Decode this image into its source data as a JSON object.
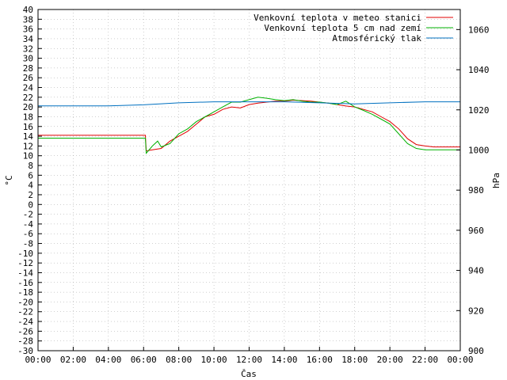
{
  "chart_data": {
    "type": "line",
    "title": "",
    "xlabel": "Čas",
    "ylabel": "°C",
    "y2label": "hPa",
    "xlim": [
      0,
      24
    ],
    "ylim": [
      -30,
      40
    ],
    "y2lim": [
      900,
      1070
    ],
    "grid": true,
    "legend_position": "top-right",
    "x_ticks": [
      "00:00",
      "02:00",
      "04:00",
      "06:00",
      "08:00",
      "10:00",
      "12:00",
      "14:00",
      "16:00",
      "18:00",
      "20:00",
      "22:00",
      "00:00"
    ],
    "y_ticks": [
      40,
      38,
      36,
      34,
      32,
      30,
      28,
      26,
      24,
      22,
      20,
      18,
      16,
      14,
      12,
      10,
      8,
      6,
      4,
      2,
      0,
      -2,
      -4,
      -6,
      -8,
      -10,
      -12,
      -14,
      -16,
      -18,
      -20,
      -22,
      -24,
      -26,
      -28,
      -30
    ],
    "y2_ticks": [
      1060,
      1040,
      1020,
      1000,
      980,
      960,
      940,
      920,
      900
    ],
    "series": [
      {
        "name": "Venkovní teplota v meteo stanici",
        "color": "#e00000",
        "axis": "left",
        "points": [
          [
            0,
            14.2
          ],
          [
            6.1,
            14.2
          ],
          [
            6.15,
            11
          ],
          [
            6.5,
            11.2
          ],
          [
            7,
            11.5
          ],
          [
            7.5,
            13
          ],
          [
            8,
            14
          ],
          [
            8.5,
            15
          ],
          [
            9,
            16.5
          ],
          [
            9.5,
            18
          ],
          [
            10,
            18.5
          ],
          [
            10.5,
            19.5
          ],
          [
            11,
            20
          ],
          [
            11.5,
            19.8
          ],
          [
            12,
            20.5
          ],
          [
            12.5,
            20.8
          ],
          [
            13,
            21
          ],
          [
            13.5,
            21.2
          ],
          [
            14,
            21.2
          ],
          [
            14.5,
            21.4
          ],
          [
            15,
            21.3
          ],
          [
            15.5,
            21.2
          ],
          [
            16,
            21
          ],
          [
            16.5,
            20.8
          ],
          [
            17,
            20.5
          ],
          [
            17.5,
            20.2
          ],
          [
            18,
            20
          ],
          [
            18.5,
            19.5
          ],
          [
            19,
            19
          ],
          [
            19.5,
            18
          ],
          [
            20,
            17
          ],
          [
            20.5,
            15.5
          ],
          [
            21,
            13.5
          ],
          [
            21.5,
            12.3
          ],
          [
            22,
            12
          ],
          [
            22.5,
            11.8
          ],
          [
            23,
            11.8
          ],
          [
            24,
            11.8
          ]
        ]
      },
      {
        "name": "Venkovní teplota 5 cm nad zemí",
        "color": "#00b000",
        "axis": "left",
        "points": [
          [
            0,
            13.6
          ],
          [
            6.1,
            13.6
          ],
          [
            6.15,
            10.5
          ],
          [
            6.5,
            12
          ],
          [
            6.8,
            13
          ],
          [
            7,
            11.8
          ],
          [
            7.5,
            12.5
          ],
          [
            8,
            14.5
          ],
          [
            8.5,
            15.5
          ],
          [
            9,
            17
          ],
          [
            9.5,
            18
          ],
          [
            10,
            19
          ],
          [
            10.5,
            20
          ],
          [
            11,
            21
          ],
          [
            11.5,
            21
          ],
          [
            12,
            21.5
          ],
          [
            12.5,
            22
          ],
          [
            13,
            21.8
          ],
          [
            13.5,
            21.5
          ],
          [
            14,
            21.3
          ],
          [
            14.5,
            21.5
          ],
          [
            15,
            21.2
          ],
          [
            15.5,
            21
          ],
          [
            16,
            21
          ],
          [
            16.5,
            20.8
          ],
          [
            17,
            20.5
          ],
          [
            17.5,
            21.2
          ],
          [
            18,
            20
          ],
          [
            18.5,
            19.3
          ],
          [
            19,
            18.5
          ],
          [
            19.5,
            17.5
          ],
          [
            20,
            16.5
          ],
          [
            20.5,
            14.5
          ],
          [
            21,
            12.5
          ],
          [
            21.5,
            11.5
          ],
          [
            22,
            11.2
          ],
          [
            22.5,
            11.2
          ],
          [
            24,
            11.2
          ]
        ]
      },
      {
        "name": "Atmosférický tlak",
        "color": "#0070c0",
        "axis": "right",
        "points": [
          [
            0,
            1022
          ],
          [
            4,
            1022
          ],
          [
            6,
            1022.5
          ],
          [
            8,
            1023.5
          ],
          [
            10,
            1024
          ],
          [
            12,
            1024
          ],
          [
            14,
            1024
          ],
          [
            16,
            1023.5
          ],
          [
            18,
            1023
          ],
          [
            20,
            1023.5
          ],
          [
            22,
            1024
          ],
          [
            24,
            1024
          ]
        ]
      }
    ]
  }
}
